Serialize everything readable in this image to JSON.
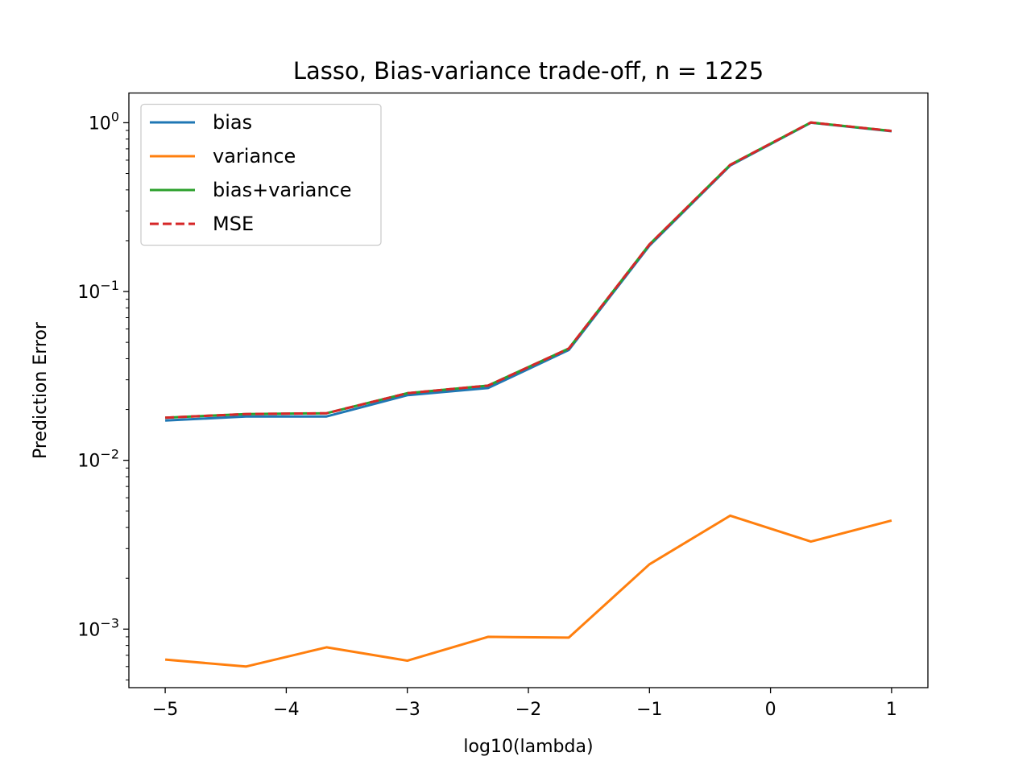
{
  "chart_data": {
    "type": "line",
    "title": "Lasso, Bias-variance trade-off, n = 1225",
    "xlabel": "log10(lambda)",
    "ylabel": "Prediction Error",
    "yscale": "log",
    "xlim": [
      -5.3,
      1.3
    ],
    "ylim": [
      0.00045,
      1.5
    ],
    "grid": false,
    "legend_position": "top-left",
    "x": [
      -5,
      -4.333,
      -3.667,
      -3,
      -2.333,
      -1.667,
      -1,
      -0.333,
      0.333,
      1
    ],
    "x_ticks": [
      -5,
      -4,
      -3,
      -2,
      -1,
      0,
      1
    ],
    "x_tick_labels": [
      "−5",
      "−4",
      "−3",
      "−2",
      "−1",
      "0",
      "1"
    ],
    "y_ticks": [
      {
        "value": 0.001,
        "base": "10",
        "exp": "−3"
      },
      {
        "value": 0.01,
        "base": "10",
        "exp": "−2"
      },
      {
        "value": 0.1,
        "base": "10",
        "exp": "−1"
      },
      {
        "value": 1,
        "base": "10",
        "exp": "0"
      }
    ],
    "series": [
      {
        "name": "bias",
        "color": "#1f77b4",
        "dash": "solid",
        "values": [
          0.0172,
          0.0182,
          0.0182,
          0.0243,
          0.0268,
          0.045,
          0.187,
          0.558,
          1.0,
          0.89
        ]
      },
      {
        "name": "variance",
        "color": "#ff7f0e",
        "dash": "solid",
        "values": [
          0.00066,
          0.0006,
          0.00078,
          0.00065,
          0.0009,
          0.00089,
          0.00242,
          0.0047,
          0.0033,
          0.0044
        ]
      },
      {
        "name": "bias+variance",
        "color": "#2ca02c",
        "dash": "solid",
        "values": [
          0.0179,
          0.0188,
          0.019,
          0.025,
          0.0277,
          0.0459,
          0.19,
          0.563,
          1.003,
          0.894
        ]
      },
      {
        "name": "MSE",
        "color": "#d62728",
        "dash": "dashed",
        "values": [
          0.0179,
          0.0188,
          0.019,
          0.025,
          0.0277,
          0.0459,
          0.19,
          0.563,
          1.003,
          0.894
        ]
      }
    ]
  }
}
